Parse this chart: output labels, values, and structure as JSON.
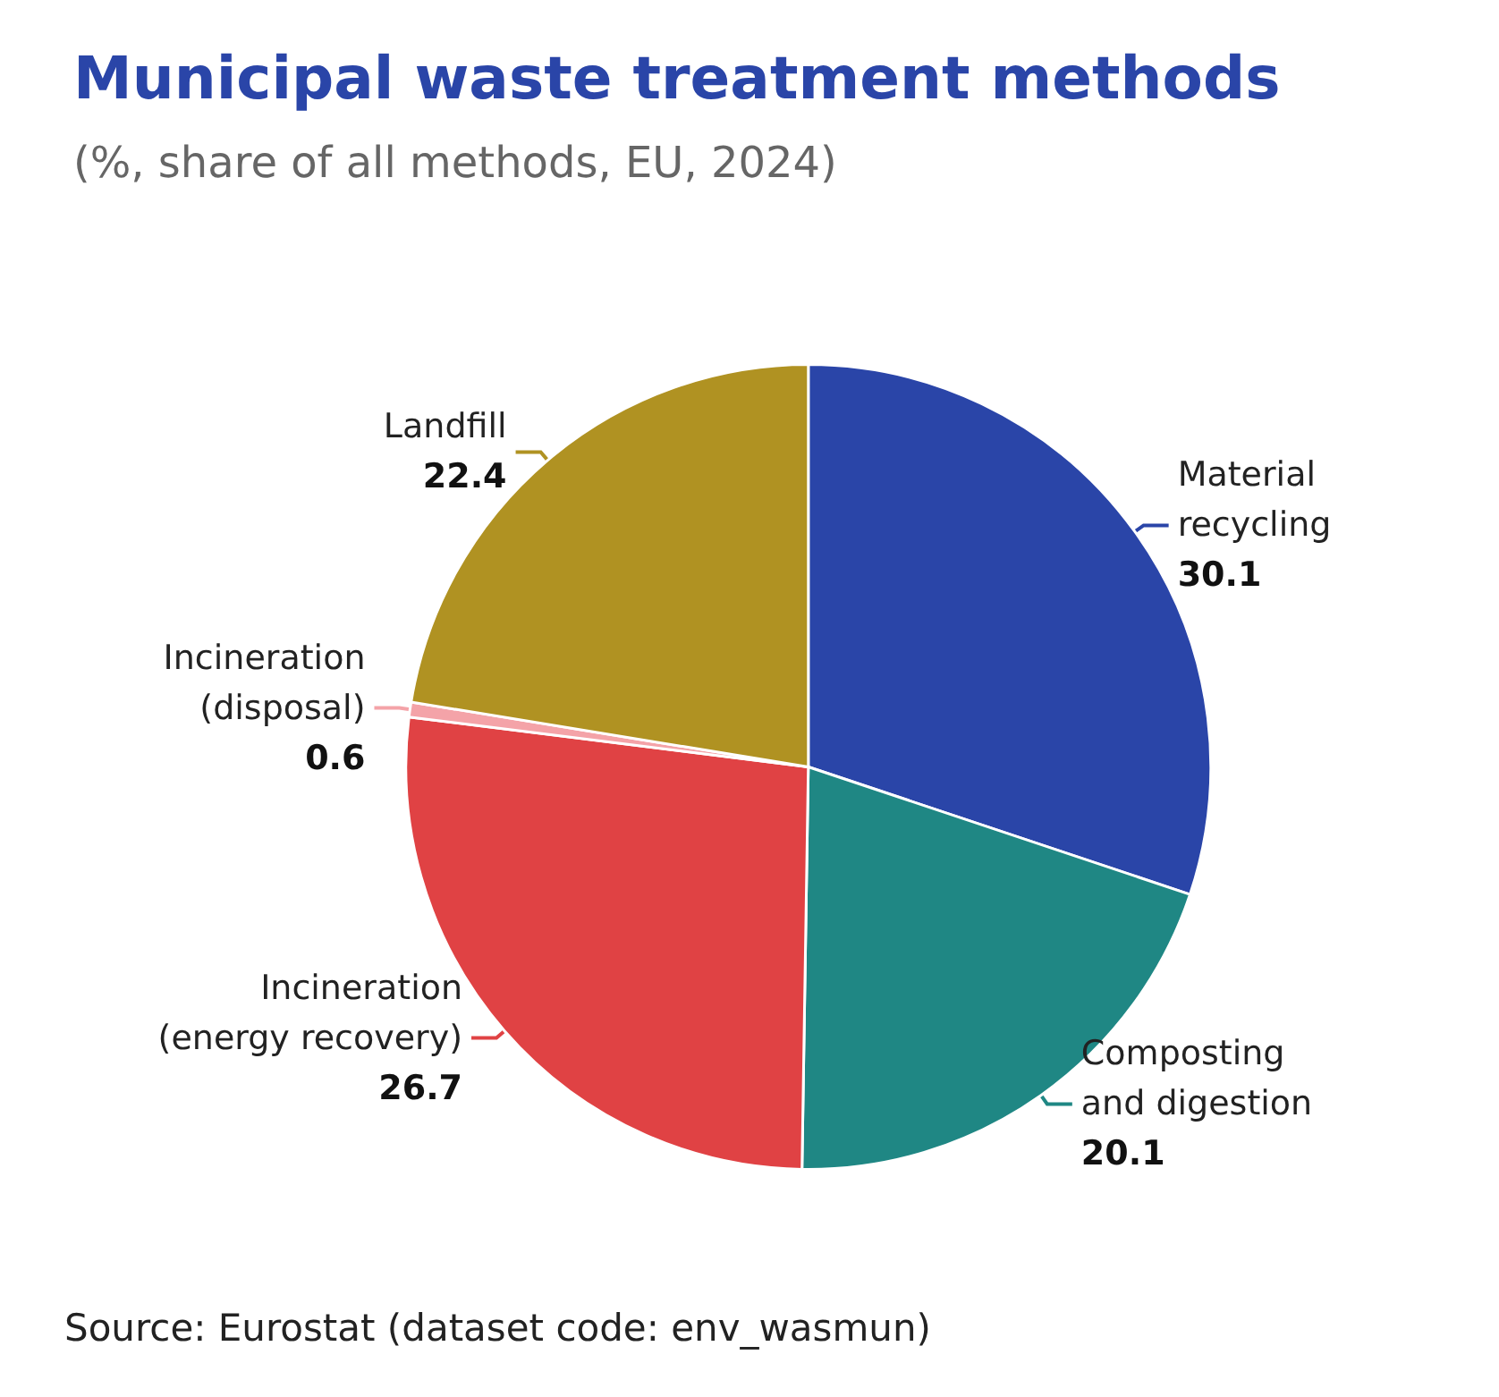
{
  "chart_data": {
    "type": "pie",
    "title": "Municipal waste treatment methods",
    "subtitle": "(%, share of all methods, EU, 2024)",
    "categories": [
      "Material recycling",
      "Composting and digestion",
      "Incineration (energy recovery)",
      "Incineration (disposal)",
      "Landfill"
    ],
    "values": [
      30.1,
      20.1,
      26.7,
      0.6,
      22.4
    ],
    "colors": [
      "#2a45a8",
      "#1f8784",
      "#e04244",
      "#f4a3a8",
      "#b09222"
    ],
    "data_labels": true,
    "legend": false,
    "annotations": [
      "Source: Eurostat (dataset code: env_wasmun)"
    ]
  }
}
